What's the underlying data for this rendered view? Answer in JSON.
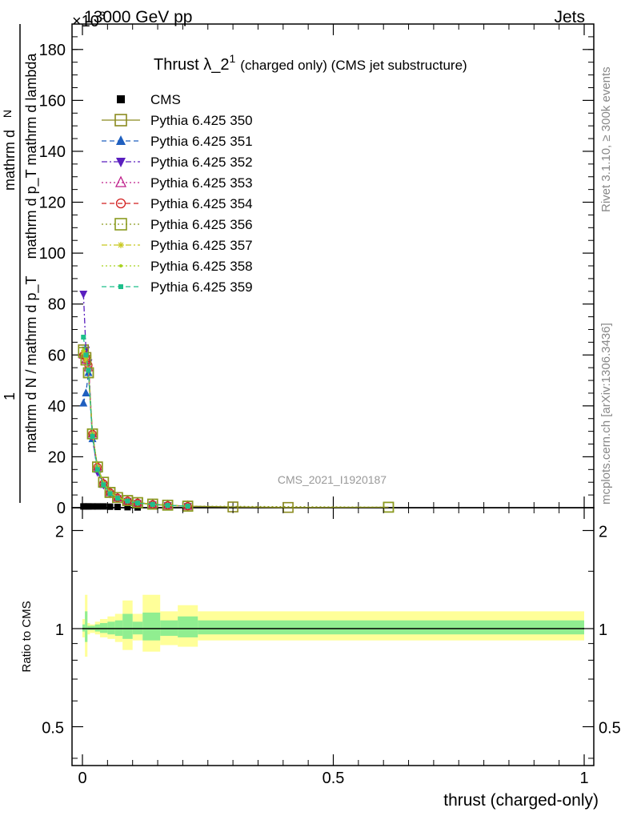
{
  "header": {
    "left": "13000 GeV pp",
    "right": "Jets",
    "exponent": "×10",
    "exponent_power": "3"
  },
  "side_labels": {
    "rivet": "Rivet 3.1.10, ≥ 300k events",
    "mcplots": "mcplots.cern.ch [arXiv:1306.3436]"
  },
  "watermark": "CMS_2021_I1920187",
  "colors": {
    "cms": "#000000",
    "p350": "#8b8b1f",
    "p351": "#1f5fbf",
    "p352": "#5a1fbf",
    "p353": "#bf1f8b",
    "p354": "#d21f1f",
    "p356": "#8b9b1f",
    "p357": "#c8c81f",
    "p358": "#a8d21f",
    "p359": "#1fbf8b",
    "band_outer": "#ffff99",
    "band_inner": "#90ee90"
  },
  "chart_data": [
    {
      "type": "line",
      "title_main": "Thrust λ_2",
      "title_sup": "1",
      "title_rest": "(charged only) (CMS jet substructure)",
      "ylabel_top": "1",
      "ylabel_den": "mathrm d N / mathrm d p_T",
      "ylabel_num_top": "mathrm d",
      "ylabel_num_N": "N",
      "ylabel_num_rest": "mathrm d p_T mathrm d lambda",
      "xlim": [
        0,
        1
      ],
      "ylim": [
        0,
        190
      ],
      "yticks": [
        0,
        20,
        40,
        60,
        80,
        100,
        120,
        140,
        160,
        180
      ],
      "series": [
        {
          "name": "CMS",
          "key": "cms",
          "marker": "square-filled",
          "line": "none",
          "x": [
            0.002,
            0.007,
            0.012,
            0.02,
            0.03,
            0.042,
            0.055,
            0.07,
            0.09,
            0.11
          ],
          "y": [
            0.5,
            0.5,
            0.5,
            0.5,
            0.5,
            0.5,
            0.4,
            0.3,
            0.2,
            0.1
          ]
        },
        {
          "name": "Pythia 6.425 350",
          "key": "p350",
          "marker": "square-open",
          "line": "solid",
          "x": [
            0.002,
            0.007,
            0.012,
            0.02,
            0.03,
            0.042,
            0.055,
            0.07,
            0.09,
            0.11,
            0.14,
            0.17,
            0.21,
            0.3,
            0.41,
            0.61
          ],
          "y": [
            62,
            59,
            53,
            29,
            16,
            10,
            6,
            4,
            2.8,
            2.0,
            1.4,
            1.0,
            0.6,
            0.3,
            0.1,
            0.2
          ]
        },
        {
          "name": "Pythia 6.425 351",
          "key": "p351",
          "marker": "triangle-up-filled",
          "line": "dashed",
          "x": [
            0.002,
            0.007,
            0.012,
            0.02,
            0.03,
            0.042,
            0.055,
            0.07,
            0.09,
            0.11,
            0.14,
            0.17,
            0.21
          ],
          "y": [
            41,
            45,
            53,
            27,
            15,
            9,
            6,
            3.8,
            2.7,
            1.9,
            1.3,
            0.9,
            0.6
          ]
        },
        {
          "name": "Pythia 6.425 352",
          "key": "p352",
          "marker": "triangle-down-filled",
          "line": "dashdot",
          "x": [
            0.002,
            0.007,
            0.012,
            0.02,
            0.03,
            0.042,
            0.055,
            0.07,
            0.09,
            0.11,
            0.14,
            0.17,
            0.21
          ],
          "y": [
            84,
            62,
            57,
            28,
            14,
            9,
            5.5,
            3.7,
            2.6,
            1.8,
            1.2,
            0.9,
            0.6
          ]
        },
        {
          "name": "Pythia 6.425 353",
          "key": "p353",
          "marker": "triangle-up-open",
          "line": "dotted",
          "x": [
            0.002,
            0.007,
            0.012,
            0.02,
            0.03,
            0.042,
            0.055,
            0.07,
            0.09,
            0.11,
            0.14,
            0.17,
            0.21
          ],
          "y": [
            60,
            58,
            55,
            29,
            16,
            9.5,
            6,
            3.9,
            2.7,
            1.9,
            1.3,
            0.9,
            0.6
          ]
        },
        {
          "name": "Pythia 6.425 354",
          "key": "p354",
          "marker": "circle-open",
          "line": "dashed",
          "x": [
            0.002,
            0.007,
            0.012,
            0.02,
            0.03,
            0.042,
            0.055,
            0.07,
            0.09,
            0.11,
            0.14,
            0.17,
            0.21
          ],
          "y": [
            60,
            59,
            56,
            29,
            16,
            9.5,
            6,
            3.9,
            2.7,
            1.9,
            1.3,
            0.9,
            0.6
          ]
        },
        {
          "name": "Pythia 6.425 356",
          "key": "p356",
          "marker": "square-open",
          "line": "dotted",
          "x": [
            0.002,
            0.007,
            0.012,
            0.02,
            0.03,
            0.042,
            0.055,
            0.07,
            0.09,
            0.11,
            0.14,
            0.17,
            0.21,
            0.61
          ],
          "y": [
            61,
            58,
            53,
            29,
            16,
            10,
            6,
            4,
            2.8,
            2.0,
            1.4,
            1.0,
            0.6,
            0.2
          ]
        },
        {
          "name": "Pythia 6.425 357",
          "key": "p357",
          "marker": "star",
          "line": "dashdot",
          "x": [
            0.002,
            0.007,
            0.012,
            0.02,
            0.03,
            0.042,
            0.055,
            0.07,
            0.09,
            0.11,
            0.14,
            0.17,
            0.21
          ],
          "y": [
            61,
            58,
            54,
            29,
            16,
            9.5,
            6,
            3.9,
            2.7,
            1.9,
            1.3,
            0.9,
            0.6
          ]
        },
        {
          "name": "Pythia 6.425 358",
          "key": "p358",
          "marker": "dot",
          "line": "dotted",
          "x": [
            0.002,
            0.007,
            0.012,
            0.02,
            0.03,
            0.042,
            0.055,
            0.07,
            0.09,
            0.11,
            0.14,
            0.17,
            0.21
          ],
          "y": [
            62,
            59,
            54,
            29,
            16,
            9.5,
            6,
            3.9,
            2.7,
            1.9,
            1.3,
            0.9,
            0.6
          ]
        },
        {
          "name": "Pythia 6.425 359",
          "key": "p359",
          "marker": "square-small",
          "line": "dashed",
          "x": [
            0.002,
            0.007,
            0.012,
            0.02,
            0.03,
            0.042,
            0.055,
            0.07,
            0.09,
            0.11,
            0.14,
            0.17,
            0.21
          ],
          "y": [
            67,
            60,
            54,
            28,
            15,
            9,
            5.5,
            3.7,
            2.6,
            1.8,
            1.3,
            0.9,
            0.6
          ]
        }
      ]
    },
    {
      "type": "area",
      "ylabel": "Ratio to CMS",
      "xlabel": "thrust (charged-only)",
      "xlim": [
        0,
        1
      ],
      "ylim": [
        0.38,
        2.35
      ],
      "yscale": "log",
      "yticks": [
        0.5,
        1,
        2
      ],
      "ytick_labels": [
        "0.5",
        "1",
        "2"
      ],
      "xticks": [
        0,
        0.5,
        1
      ],
      "xtick_labels": [
        "0",
        "0.5",
        "1"
      ],
      "band_edges": [
        0,
        0.005,
        0.01,
        0.015,
        0.025,
        0.035,
        0.05,
        0.065,
        0.08,
        0.1,
        0.12,
        0.155,
        0.19,
        0.23,
        1.0
      ],
      "outer_lo": [
        0.94,
        0.82,
        0.96,
        0.97,
        0.96,
        0.94,
        0.93,
        0.91,
        0.86,
        0.92,
        0.85,
        0.89,
        0.88,
        0.92
      ],
      "outer_hi": [
        1.07,
        1.27,
        1.04,
        1.03,
        1.05,
        1.07,
        1.09,
        1.11,
        1.22,
        1.11,
        1.27,
        1.13,
        1.18,
        1.13
      ],
      "inner_lo": [
        0.98,
        0.91,
        0.99,
        0.99,
        0.98,
        0.97,
        0.96,
        0.95,
        0.93,
        0.96,
        0.92,
        0.95,
        0.94,
        0.96
      ],
      "inner_hi": [
        1.03,
        1.13,
        1.02,
        1.02,
        1.03,
        1.04,
        1.05,
        1.06,
        1.11,
        1.05,
        1.12,
        1.06,
        1.09,
        1.06
      ],
      "reference": 1
    }
  ]
}
